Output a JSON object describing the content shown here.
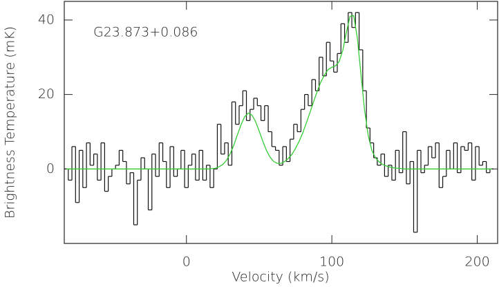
{
  "chart_data": {
    "type": "step",
    "annotation": "G23.873+0.086",
    "x_label": "Velocity (km/s)",
    "y_label": "Brightness Temperature (mK)",
    "xlim": [
      -84,
      214
    ],
    "xticks": [
      0,
      100,
      200
    ],
    "ylim": [
      -20,
      45
    ],
    "yticks": [
      0,
      20,
      40
    ],
    "x": [
      -82.5,
      -80,
      -77.5,
      -75,
      -72.5,
      -70,
      -67.5,
      -65,
      -62.5,
      -60,
      -57.5,
      -55,
      -52.5,
      -50,
      -47.5,
      -45,
      -42.5,
      -40,
      -37.5,
      -35,
      -32.5,
      -30,
      -27.5,
      -25,
      -22.5,
      -20,
      -17.5,
      -15,
      -12.5,
      -10,
      -7.5,
      -5,
      -2.5,
      0,
      2.5,
      5,
      7.5,
      10,
      12.5,
      15,
      17.5,
      20,
      22.5,
      25,
      27.5,
      30,
      32.5,
      35,
      37.5,
      40,
      42.5,
      45,
      47.5,
      50,
      52.5,
      55,
      57.5,
      60,
      62.5,
      65,
      67.5,
      70,
      72.5,
      75,
      77.5,
      80,
      82.5,
      85,
      87.5,
      90,
      92.5,
      95,
      97.5,
      100,
      102.5,
      105,
      107.5,
      110,
      112.5,
      115,
      117.5,
      120,
      122.5,
      125,
      127.5,
      130,
      132.5,
      135,
      137.5,
      140,
      142.5,
      145,
      147.5,
      150,
      152.5,
      155,
      157.5,
      160,
      162.5,
      165,
      167.5,
      170,
      172.5,
      175,
      177.5,
      180,
      182.5,
      185,
      187.5,
      190,
      192.5,
      195,
      197.5,
      200,
      202.5,
      205,
      207.5,
      210
    ],
    "series": [
      {
        "color": "#111111",
        "style": "step",
        "values": [
          0,
          -3,
          6,
          -9,
          5,
          -5,
          7,
          1,
          4,
          -3,
          7,
          -6,
          -2,
          0,
          1,
          5,
          2,
          -4,
          -1,
          -15,
          -3,
          3,
          0,
          -11,
          4,
          -2,
          7,
          2,
          -5,
          6,
          -2,
          0,
          5,
          -5,
          1,
          4,
          -3,
          5,
          -3,
          1,
          -5,
          0,
          12,
          4,
          7,
          1,
          18,
          12,
          17,
          21,
          13,
          16,
          19,
          17,
          13,
          17,
          10,
          6,
          5,
          1,
          6,
          2,
          8,
          12,
          10,
          16,
          20,
          17,
          24,
          21,
          30,
          25,
          34,
          29,
          26,
          31,
          39,
          34,
          42,
          38,
          42,
          32,
          21,
          11,
          7,
          3,
          1,
          4,
          -2,
          1,
          -3,
          5,
          -1,
          10,
          -4,
          2,
          -17,
          5,
          -1,
          1,
          6,
          3,
          7,
          -5,
          -2,
          5,
          0,
          7,
          -1,
          6,
          5,
          7,
          -3,
          6,
          1,
          2,
          -1,
          0
        ]
      },
      {
        "color": "#33cc33",
        "style": "line",
        "values": [
          0,
          0,
          0,
          0,
          0,
          0,
          0,
          0,
          0,
          0,
          0,
          0,
          0,
          0,
          0,
          0,
          0,
          0,
          0,
          0,
          0,
          0,
          0,
          0,
          0,
          0,
          0,
          0,
          0,
          0,
          0,
          0,
          0,
          0,
          0,
          0,
          0,
          0,
          0,
          0,
          0.1,
          0.2,
          0.6,
          1.2,
          2.3,
          4.0,
          6.3,
          9.1,
          11.8,
          14.0,
          15.0,
          14.5,
          12.8,
          10.2,
          7.5,
          5.0,
          3.2,
          2.0,
          1.5,
          1.5,
          2.0,
          2.8,
          3.9,
          5.5,
          7.4,
          9.7,
          12.4,
          15.2,
          18.1,
          20.9,
          23.4,
          25.3,
          26.7,
          27.3,
          27.7,
          28.8,
          31.8,
          36.7,
          41.0,
          41.2,
          35.3,
          25.5,
          15.8,
          9.0,
          5.0,
          3.0,
          1.9,
          1.2,
          0.8,
          0.5,
          0.3,
          0.2,
          0.1,
          0,
          0,
          0,
          0,
          0,
          0,
          0,
          0,
          0,
          0,
          0,
          0,
          0,
          0,
          0,
          0,
          0,
          0,
          0,
          0,
          0,
          0,
          0,
          0,
          0
        ]
      }
    ]
  }
}
